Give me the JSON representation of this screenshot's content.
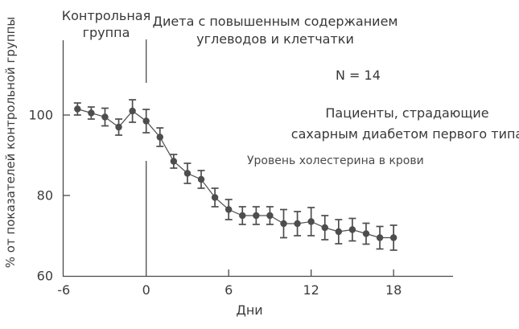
{
  "figure": {
    "y_axis_label": "% от показателей контрольной группы",
    "x_axis_label": "Дни",
    "annotations": {
      "control_group": "Контрольная\nгруппа",
      "diet": "Диета с повышенным содержанием\nуглеводов и клетчатки",
      "n": "N = 14",
      "patients": "Пациенты, страдающие\nсахарным диабетом первого типа",
      "measure": "Уровень холестерина в крови"
    }
  },
  "chart_data": {
    "type": "line",
    "title": "",
    "xlabel": "Дни",
    "ylabel": "% от показателей контрольной группы",
    "x": [
      -5,
      -4,
      -3,
      -2,
      -1,
      0,
      1,
      2,
      3,
      4,
      5,
      6,
      7,
      8,
      9,
      10,
      11,
      12,
      13,
      14,
      15,
      16,
      17,
      18
    ],
    "series": [
      {
        "name": "Уровень холестерина в крови",
        "values": [
          101.5,
          100.5,
          99.5,
          97,
          101,
          98.5,
          94.5,
          88.5,
          85.5,
          84,
          79.5,
          76.5,
          75,
          75,
          75,
          73,
          73,
          73.5,
          72,
          71,
          71.5,
          70.5,
          69.5,
          69.5
        ],
        "errors": [
          1.5,
          1.5,
          2.2,
          2.0,
          2.8,
          2.9,
          2.3,
          1.7,
          2.5,
          2.2,
          2.3,
          2.5,
          2.2,
          2.2,
          2.2,
          3.5,
          3.0,
          3.5,
          3.0,
          3.0,
          2.8,
          2.6,
          2.8,
          3.1
        ]
      }
    ],
    "xticks": [
      -6,
      0,
      6,
      12,
      18
    ],
    "xtick_labels": [
      "-6",
      "0",
      "6",
      "12",
      "18"
    ],
    "yticks": [
      100,
      80,
      60
    ],
    "ytick_labels": [
      "100",
      "80",
      "60"
    ],
    "xlim": [
      -6,
      22.3
    ],
    "ylim": [
      60,
      106
    ],
    "separator_at_x": 0,
    "n_patients": 14,
    "legend_position": "none",
    "grid": false,
    "colors": {
      "series": "#4d4d4d",
      "axis": "#4a4a4a",
      "ticktext": "#3d3d3d",
      "text": "#383838"
    }
  }
}
